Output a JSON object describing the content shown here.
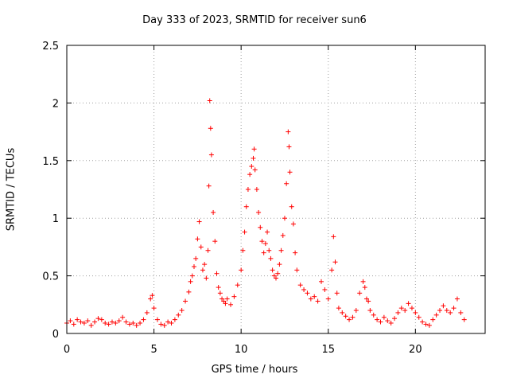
{
  "chart_data": {
    "type": "scatter",
    "title": "Day 333 of 2023, SRMTID for receiver sun6",
    "xlabel": "GPS time / hours",
    "ylabel": "SRMTID / TECUs",
    "xlim": [
      0,
      24
    ],
    "ylim": [
      0,
      2.5
    ],
    "xticks": [
      0,
      5,
      10,
      15,
      20
    ],
    "yticks": [
      0,
      0.5,
      1,
      1.5,
      2,
      2.5
    ],
    "ytick_labels": [
      "0",
      "0.5",
      "1",
      "1.5",
      "2",
      "2.5"
    ],
    "grid": true,
    "marker": "+",
    "color": "#ff0000",
    "series": [
      {
        "name": "SRMTID",
        "x": [
          0.0,
          0.2,
          0.4,
          0.6,
          0.8,
          1.0,
          1.2,
          1.4,
          1.6,
          1.8,
          2.0,
          2.2,
          2.4,
          2.6,
          2.8,
          3.0,
          3.2,
          3.4,
          3.6,
          3.8,
          4.0,
          4.2,
          4.4,
          4.6,
          4.8,
          4.9,
          5.0,
          5.2,
          5.4,
          5.6,
          5.8,
          6.0,
          6.2,
          6.4,
          6.6,
          6.8,
          7.0,
          7.1,
          7.2,
          7.3,
          7.4,
          7.5,
          7.6,
          7.7,
          7.8,
          7.9,
          8.0,
          8.1,
          8.15,
          8.2,
          8.25,
          8.3,
          8.4,
          8.5,
          8.6,
          8.7,
          8.8,
          8.9,
          9.0,
          9.1,
          9.2,
          9.4,
          9.6,
          9.8,
          10.0,
          10.1,
          10.2,
          10.3,
          10.4,
          10.5,
          10.6,
          10.7,
          10.75,
          10.8,
          10.9,
          11.0,
          11.1,
          11.2,
          11.3,
          11.4,
          11.5,
          11.6,
          11.7,
          11.8,
          11.9,
          12.0,
          12.1,
          12.2,
          12.3,
          12.4,
          12.5,
          12.6,
          12.7,
          12.75,
          12.8,
          12.9,
          13.0,
          13.1,
          13.2,
          13.4,
          13.6,
          13.8,
          14.0,
          14.2,
          14.4,
          14.6,
          14.8,
          15.0,
          15.2,
          15.3,
          15.4,
          15.5,
          15.6,
          15.8,
          16.0,
          16.2,
          16.4,
          16.6,
          16.8,
          17.0,
          17.1,
          17.2,
          17.3,
          17.4,
          17.6,
          17.8,
          18.0,
          18.2,
          18.4,
          18.6,
          18.8,
          19.0,
          19.2,
          19.4,
          19.6,
          19.8,
          20.0,
          20.2,
          20.4,
          20.6,
          20.8,
          21.0,
          21.2,
          21.4,
          21.6,
          21.8,
          22.0,
          22.2,
          22.4,
          22.6,
          22.8
        ],
        "y": [
          0.09,
          0.11,
          0.08,
          0.12,
          0.1,
          0.09,
          0.11,
          0.07,
          0.1,
          0.13,
          0.12,
          0.09,
          0.08,
          0.1,
          0.09,
          0.11,
          0.14,
          0.1,
          0.08,
          0.09,
          0.07,
          0.09,
          0.12,
          0.18,
          0.3,
          0.33,
          0.22,
          0.12,
          0.08,
          0.07,
          0.1,
          0.09,
          0.12,
          0.16,
          0.2,
          0.28,
          0.36,
          0.45,
          0.5,
          0.58,
          0.65,
          0.82,
          0.97,
          0.75,
          0.55,
          0.6,
          0.48,
          0.72,
          1.28,
          2.02,
          1.78,
          1.55,
          1.05,
          0.8,
          0.52,
          0.4,
          0.35,
          0.3,
          0.28,
          0.26,
          0.3,
          0.25,
          0.32,
          0.42,
          0.55,
          0.72,
          0.88,
          1.1,
          1.25,
          1.38,
          1.45,
          1.52,
          1.6,
          1.42,
          1.25,
          1.05,
          0.92,
          0.8,
          0.7,
          0.78,
          0.88,
          0.72,
          0.65,
          0.55,
          0.5,
          0.48,
          0.52,
          0.6,
          0.72,
          0.85,
          1.0,
          1.3,
          1.75,
          1.62,
          1.4,
          1.1,
          0.95,
          0.7,
          0.55,
          0.42,
          0.38,
          0.35,
          0.3,
          0.32,
          0.28,
          0.45,
          0.38,
          0.3,
          0.55,
          0.84,
          0.62,
          0.35,
          0.22,
          0.18,
          0.15,
          0.12,
          0.14,
          0.2,
          0.35,
          0.45,
          0.4,
          0.3,
          0.28,
          0.2,
          0.16,
          0.12,
          0.1,
          0.14,
          0.11,
          0.09,
          0.13,
          0.18,
          0.22,
          0.2,
          0.26,
          0.22,
          0.18,
          0.14,
          0.1,
          0.08,
          0.07,
          0.12,
          0.16,
          0.2,
          0.24,
          0.2,
          0.18,
          0.22,
          0.3,
          0.18,
          0.12
        ]
      }
    ]
  }
}
